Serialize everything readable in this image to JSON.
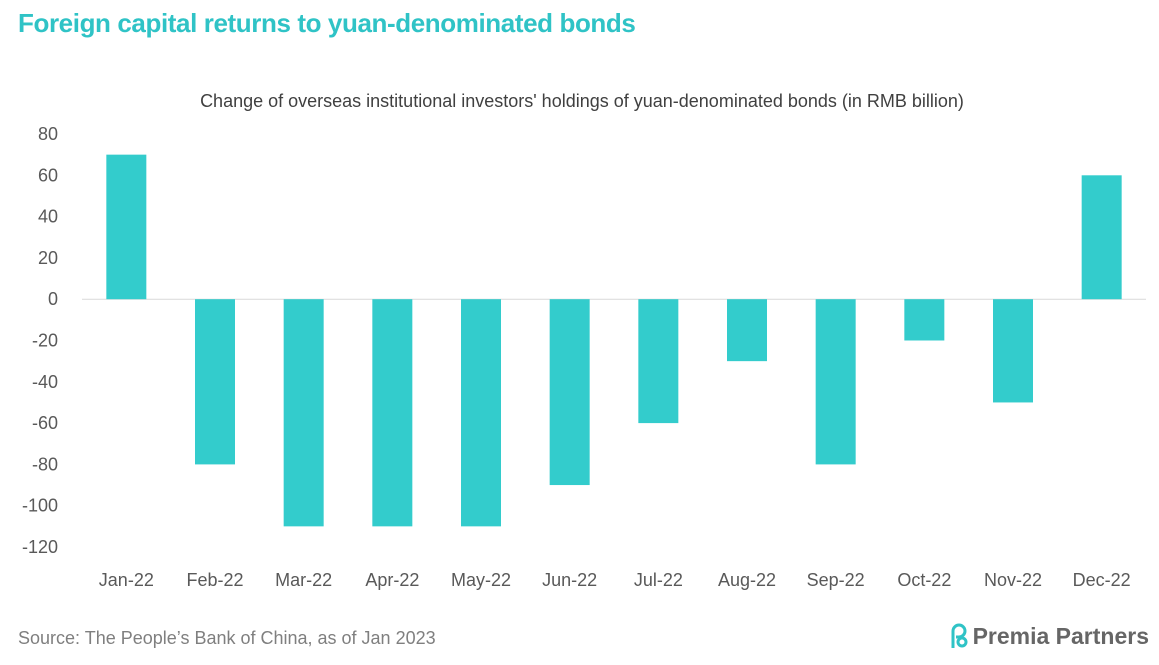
{
  "header": {
    "title": "Foreign capital returns to yuan-denominated bonds"
  },
  "footer": {
    "source": "Source: The People’s Bank of China, as of Jan 2023",
    "brand": "Premia Partners"
  },
  "colors": {
    "accent": "#2fc3c6",
    "bar": "#33cccc",
    "text": "#595959"
  },
  "chart_data": {
    "type": "bar",
    "title": "Change of overseas institutional investors' holdings of yuan-denominated bonds (in RMB billion)",
    "xlabel": "",
    "ylabel": "",
    "categories": [
      "Jan-22",
      "Feb-22",
      "Mar-22",
      "Apr-22",
      "May-22",
      "Jun-22",
      "Jul-22",
      "Aug-22",
      "Sep-22",
      "Oct-22",
      "Nov-22",
      "Dec-22"
    ],
    "values": [
      70,
      -80,
      -110,
      -110,
      -110,
      -90,
      -60,
      -30,
      -80,
      -20,
      -50,
      60
    ],
    "ylim": [
      -120,
      80
    ],
    "yticks": [
      80,
      60,
      40,
      20,
      0,
      -20,
      -40,
      -60,
      -80,
      -100,
      -120
    ],
    "grid": false,
    "legend": "none"
  }
}
